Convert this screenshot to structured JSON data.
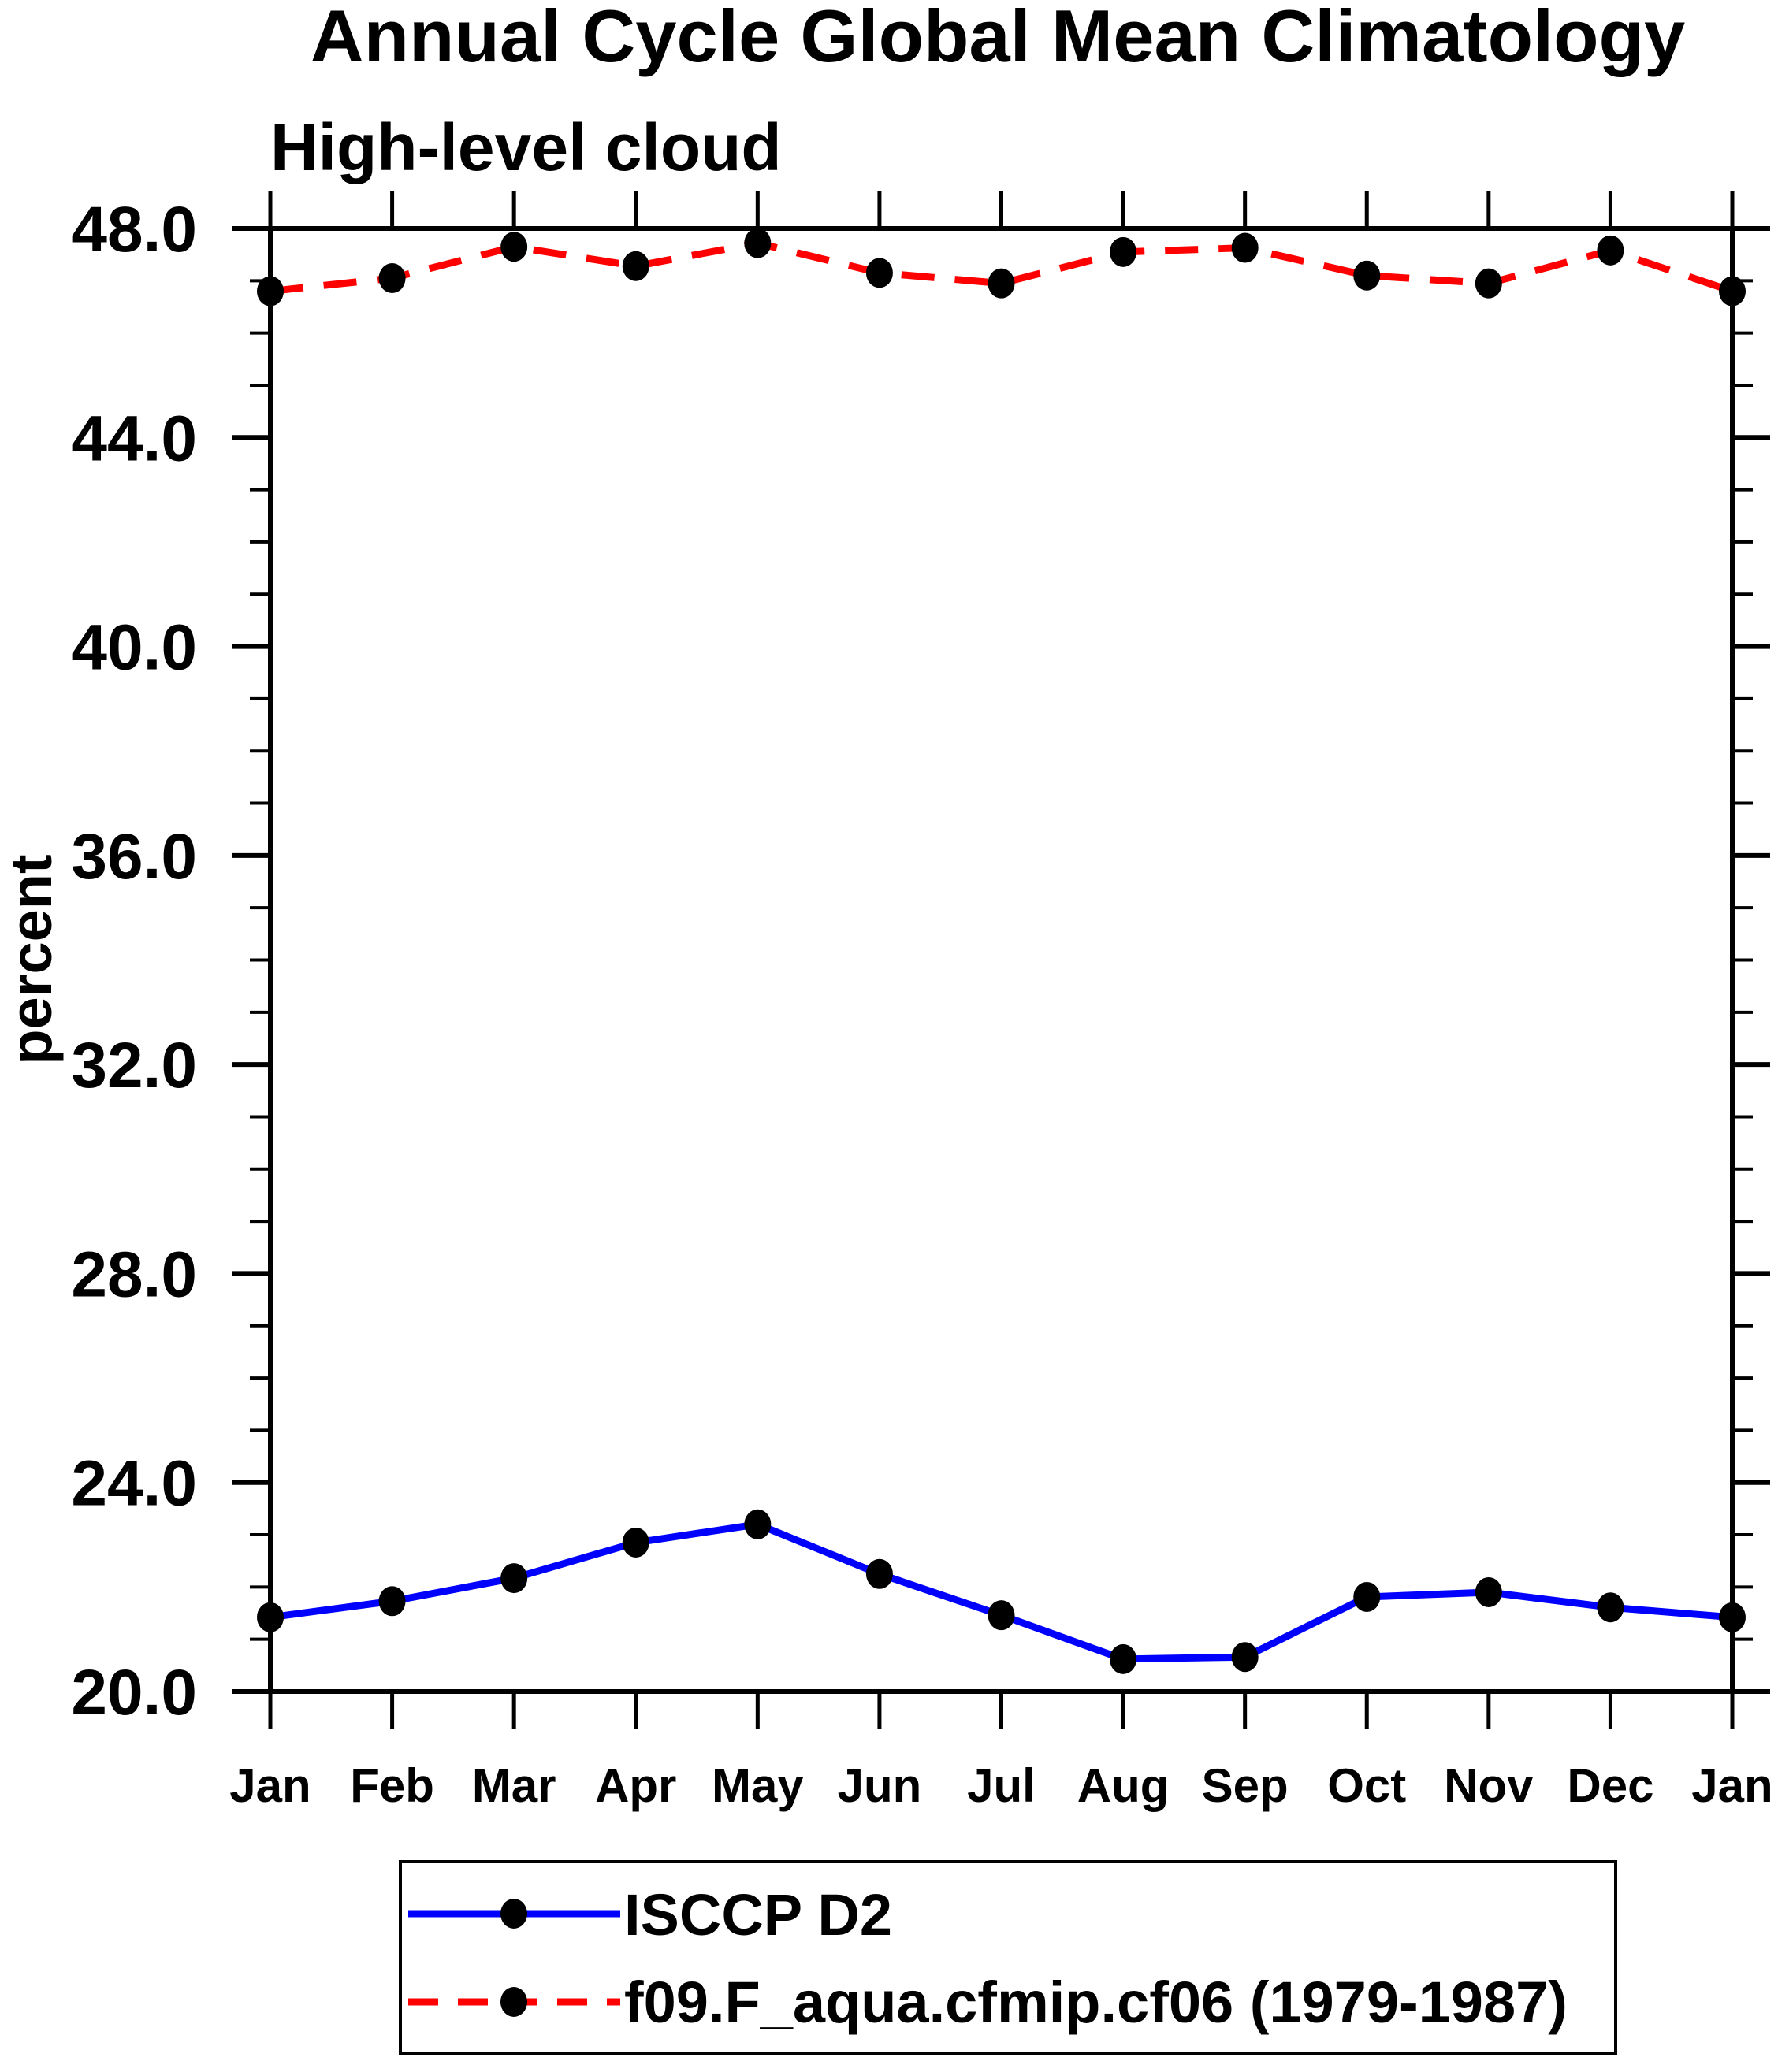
{
  "title": "Annual Cycle Global Mean Climatology",
  "subtitle": "High-level cloud",
  "y_axis": {
    "label": "percent",
    "tick_labels": [
      "48.0",
      "44.0",
      "40.0",
      "36.0",
      "32.0",
      "28.0",
      "24.0",
      "20.0"
    ],
    "min": 20,
    "max": 48,
    "major_step": 4,
    "minor_step": 1
  },
  "x_axis": {
    "tick_labels": [
      "Jan",
      "Feb",
      "Mar",
      "Apr",
      "May",
      "Jun",
      "Jul",
      "Aug",
      "Sep",
      "Oct",
      "Nov",
      "Dec",
      "Jan"
    ]
  },
  "legend": {
    "position": "bottom",
    "items": [
      {
        "label": "ISCCP D2",
        "color": "#0000ff",
        "line_style": "solid",
        "marker": "filled-circle",
        "marker_color": "#000000"
      },
      {
        "label": "f09.F_aqua.cfmip.cf06 (1979-1987)",
        "color": "#ff0000",
        "line_style": "dashed",
        "marker": "filled-circle",
        "marker_color": "#000000"
      }
    ]
  },
  "chart_data": {
    "type": "line",
    "title": "Annual Cycle Global Mean Climatology",
    "subtitle": "High-level cloud",
    "xlabel": "",
    "ylabel": "percent",
    "ylim": [
      20,
      48
    ],
    "y_major_ticks": [
      20,
      24,
      28,
      32,
      36,
      40,
      44,
      48
    ],
    "y_minor_tick_step": 1,
    "grid": false,
    "legend_position": "bottom",
    "categories": [
      "Jan",
      "Feb",
      "Mar",
      "Apr",
      "May",
      "Jun",
      "Jul",
      "Aug",
      "Sep",
      "Oct",
      "Nov",
      "Dec",
      "Jan"
    ],
    "series": [
      {
        "name": "ISCCP D2",
        "color": "#0000ff",
        "line_style": "solid",
        "marker": "filled-circle",
        "marker_color": "#000000",
        "values": [
          21.42,
          21.73,
          22.17,
          22.85,
          23.2,
          22.25,
          21.46,
          20.62,
          20.66,
          21.81,
          21.9,
          21.61,
          21.42
        ]
      },
      {
        "name": "f09.F_aqua.cfmip.cf06 (1979-1987)",
        "color": "#ff0000",
        "line_style": "dashed",
        "marker": "filled-circle",
        "marker_color": "#000000",
        "values": [
          46.8,
          47.05,
          47.65,
          47.28,
          47.72,
          47.15,
          46.95,
          47.55,
          47.63,
          47.1,
          46.95,
          47.58,
          46.8
        ]
      }
    ]
  }
}
